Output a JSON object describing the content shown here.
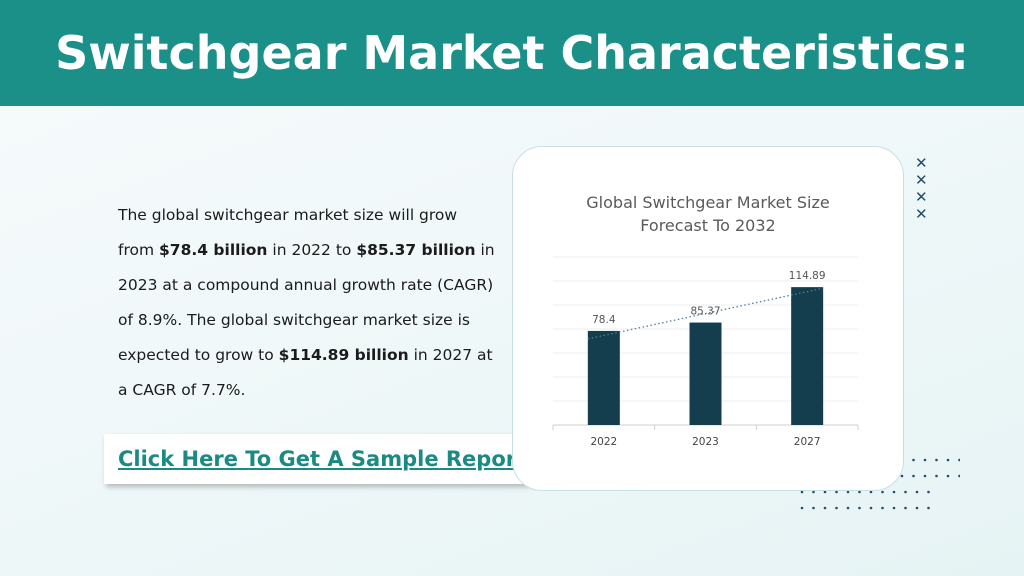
{
  "header": {
    "title": "Switchgear Market Characteristics:"
  },
  "body": {
    "paragraph": [
      {
        "text": "The global switchgear market size will grow from ",
        "bold": false
      },
      {
        "text": "$78.4 billion",
        "bold": true
      },
      {
        "text": " in 2022 to ",
        "bold": false
      },
      {
        "text": "$85.37 billion",
        "bold": true
      },
      {
        "text": " in 2023 at a compound annual growth rate (CAGR) of 8.9%. The global switchgear market size is expected to grow to ",
        "bold": false
      },
      {
        "text": "$114.89 billion",
        "bold": true
      },
      {
        "text": " in 2027 at a CAGR of 7.7%.",
        "bold": false
      }
    ]
  },
  "cta": {
    "label": "Click Here To Get A Sample Report"
  },
  "decor": {
    "cross_icon": "cross-icon",
    "cross_count": 4
  },
  "colors": {
    "header": "#1b9088",
    "bar": "#143d4e",
    "trendline": "#4a7fa3",
    "cta_text": "#1b8a82"
  },
  "chart_data": {
    "type": "bar",
    "title": "Global Switchgear Market Size Forecast To 2032",
    "categories": [
      "2022",
      "2023",
      "2027"
    ],
    "values": [
      78.4,
      85.37,
      114.89
    ],
    "data_labels": [
      "78.4",
      "85.37",
      "114.89"
    ],
    "xlabel": "",
    "ylabel": "",
    "ylim": [
      0,
      140
    ],
    "grid": true,
    "trendline": "linear-dotted",
    "legend": "none"
  }
}
